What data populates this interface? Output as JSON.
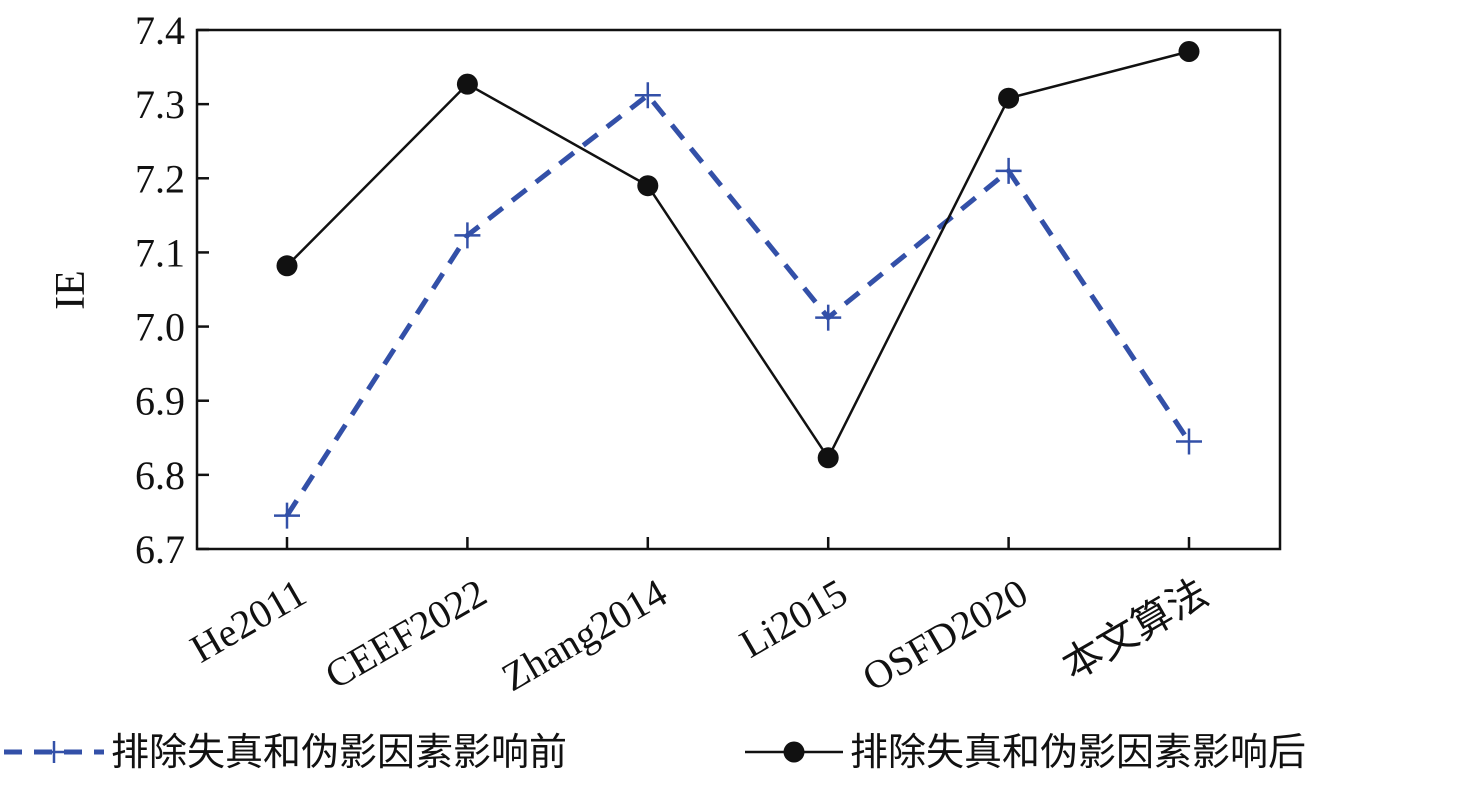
{
  "chart_data": {
    "type": "line",
    "title": "",
    "xlabel": "",
    "ylabel": "IE",
    "categories": [
      "He2011",
      "CEEF2022",
      "Zhang2014",
      "Li2015",
      "OSFD2020",
      "本文算法"
    ],
    "ylim": [
      6.7,
      7.4
    ],
    "yticks": [
      "6.7",
      "6.8",
      "6.9",
      "7.0",
      "7.1",
      "7.2",
      "7.3",
      "7.4"
    ],
    "grid": false,
    "legend_position": "bottom",
    "series": [
      {
        "name": "排除失真和伪影因素影响前",
        "values": [
          6.745,
          7.123,
          7.312,
          7.012,
          7.21,
          6.845
        ],
        "color": "#3350a8",
        "marker": "plus",
        "line_style": "dashed"
      },
      {
        "name": "排除失真和伪影因素影响后",
        "values": [
          7.082,
          7.327,
          7.19,
          6.823,
          7.308,
          7.371
        ],
        "color": "#111111",
        "marker": "circle",
        "line_style": "solid"
      }
    ]
  }
}
